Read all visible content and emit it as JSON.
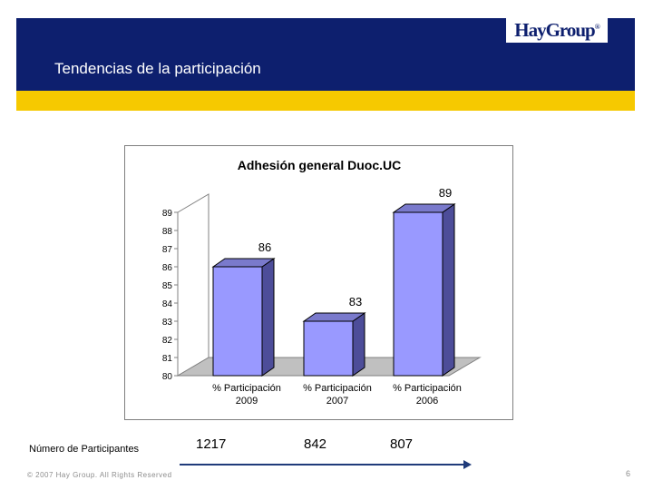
{
  "header": {
    "logo": "HayGroup",
    "title": "Tendencias de la participación"
  },
  "chart_data": {
    "type": "bar",
    "title": "Adhesión general Duoc.UC",
    "categories": [
      "% Participación 2009",
      "% Participación 2007",
      "% Participación 2006"
    ],
    "category_lines": [
      [
        "% Participación",
        "2009"
      ],
      [
        "% Participación",
        "2007"
      ],
      [
        "% Participación",
        "2006"
      ]
    ],
    "values": [
      86,
      83,
      89
    ],
    "value_labels": [
      "86",
      "83",
      "89"
    ],
    "yticks": [
      "80",
      "81",
      "82",
      "83",
      "84",
      "85",
      "86",
      "87",
      "88",
      "89"
    ],
    "ylim": [
      80,
      89
    ],
    "bar_color": "#9999ff",
    "grid": false,
    "style": "3d"
  },
  "participants": {
    "label": "Número de Participantes",
    "values": [
      "1217",
      "842",
      "807"
    ]
  },
  "footer": {
    "copyright": "© 2007 Hay Group. All Rights Reserved",
    "page": "6"
  },
  "colors": {
    "navy": "#0d1f6e",
    "yellow": "#f6c900"
  }
}
